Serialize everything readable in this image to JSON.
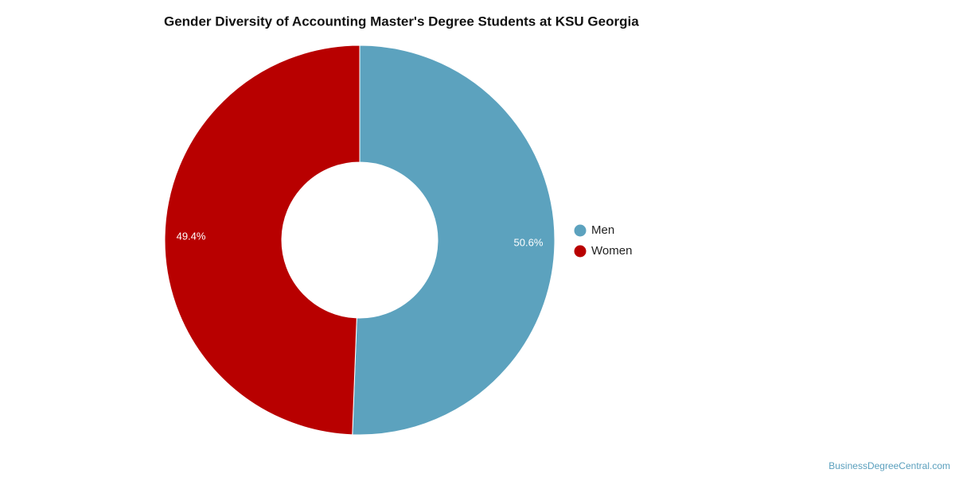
{
  "chart_data": {
    "type": "pie",
    "donut": true,
    "title": "Gender Diversity of Accounting Master's Degree Students at KSU Georgia",
    "labels": [
      "Men",
      "Women"
    ],
    "values": [
      50.6,
      49.4
    ],
    "value_labels": [
      "50.6%",
      "49.4%"
    ],
    "colors": [
      "#5ca2be",
      "#b80000"
    ],
    "legend": "right",
    "source": "BusinessDegreeCentral.com"
  }
}
